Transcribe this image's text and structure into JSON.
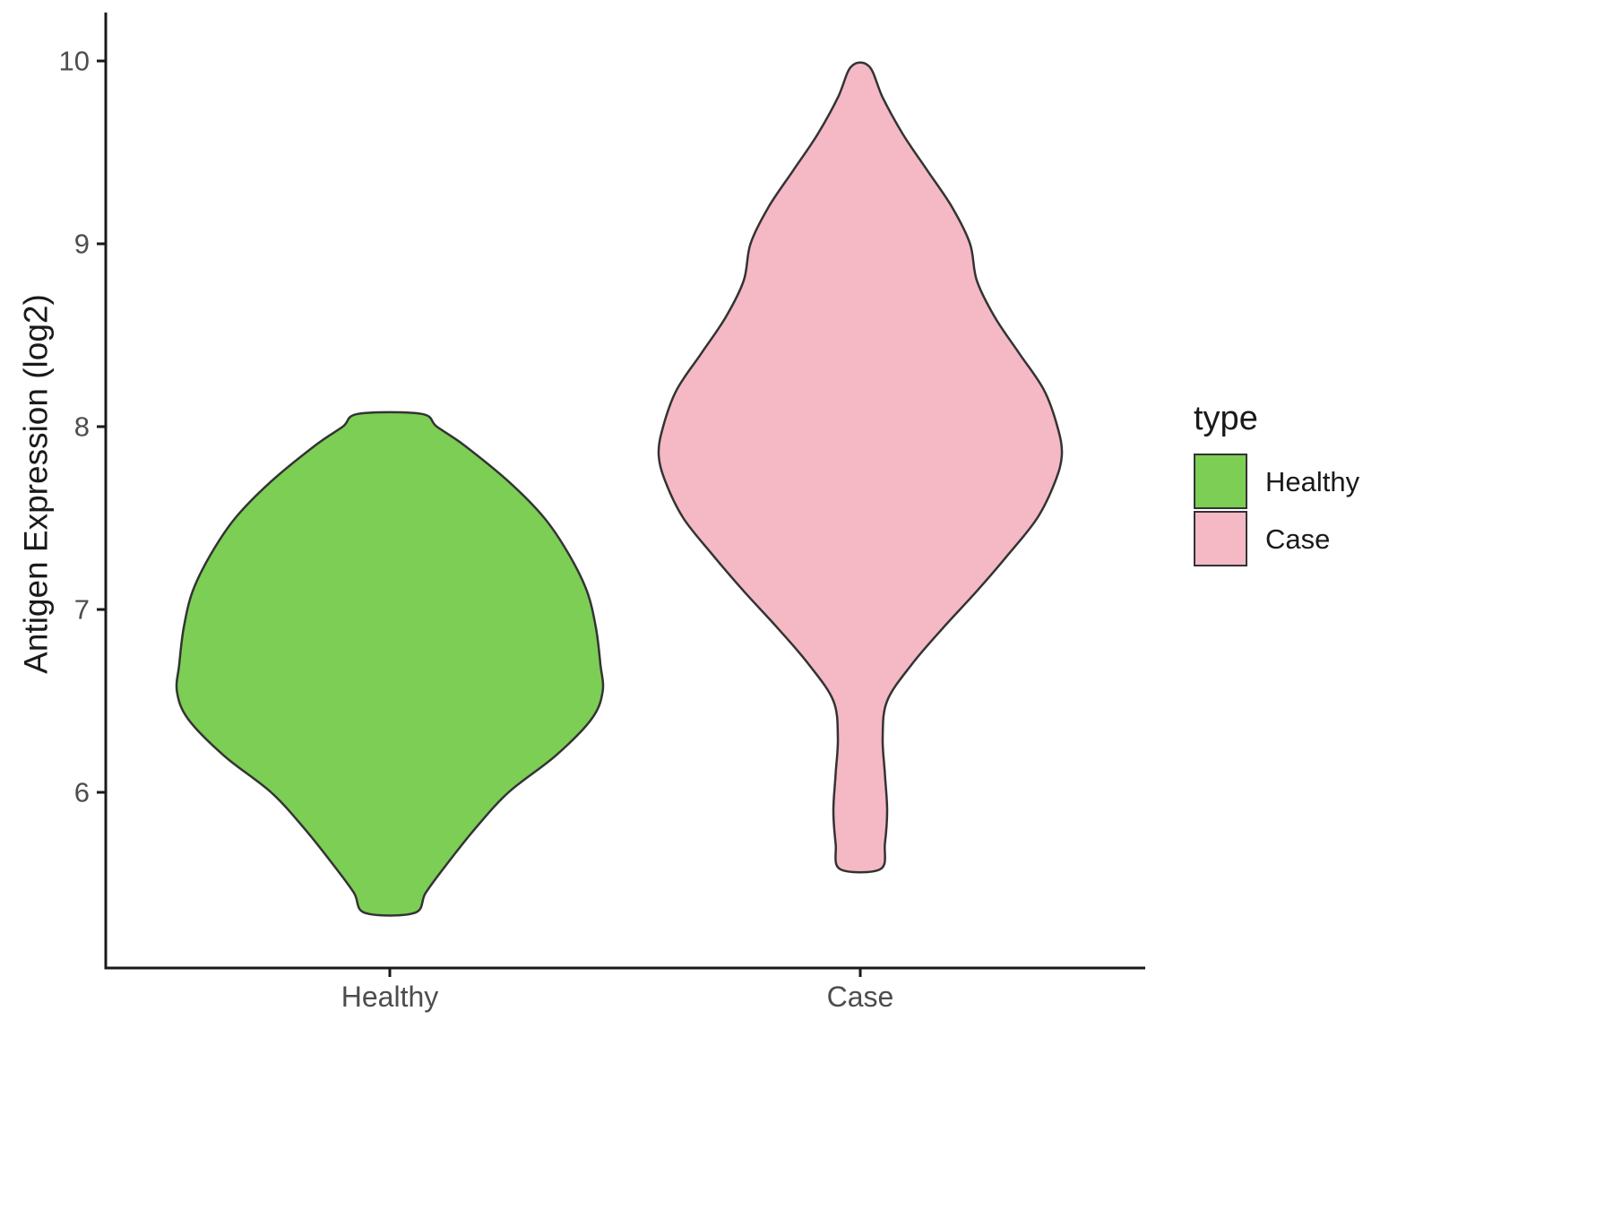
{
  "figure": {
    "background": "#FFFFFF",
    "axis_line_color": "#1a1a1a",
    "axis_text_color": "#4D4D4D"
  },
  "chart_data": {
    "type": "violin",
    "title": "",
    "xlabel": "",
    "ylabel": "Antigen Expression (log2)",
    "categories": [
      "Healthy",
      "Case"
    ],
    "yticks": [
      6,
      7,
      8,
      9,
      10
    ],
    "ylim": [
      5.2,
      10.1
    ],
    "grid": false,
    "stroke_color": "#333333",
    "legend": {
      "title": "type",
      "position": "right",
      "entries": [
        {
          "label": "Healthy",
          "color": "#7CCE55"
        },
        {
          "label": "Case",
          "color": "#F4B9C5"
        }
      ]
    },
    "series": [
      {
        "name": "Healthy",
        "category": "Healthy",
        "fill": "#7CCE55",
        "y_range": [
          5.34,
          8.07
        ],
        "profile": [
          [
            5.34,
            0.11
          ],
          [
            5.45,
            0.16
          ],
          [
            5.6,
            0.25
          ],
          [
            5.8,
            0.38
          ],
          [
            6.0,
            0.53
          ],
          [
            6.2,
            0.74
          ],
          [
            6.4,
            0.9
          ],
          [
            6.55,
            0.95
          ],
          [
            6.7,
            0.94
          ],
          [
            6.9,
            0.92
          ],
          [
            7.1,
            0.88
          ],
          [
            7.3,
            0.8
          ],
          [
            7.5,
            0.69
          ],
          [
            7.7,
            0.53
          ],
          [
            7.9,
            0.33
          ],
          [
            8.0,
            0.21
          ],
          [
            8.07,
            0.14
          ]
        ]
      },
      {
        "name": "Case",
        "category": "Case",
        "fill": "#F4B9C5",
        "y_range": [
          5.58,
          9.97
        ],
        "profile": [
          [
            5.58,
            0.09
          ],
          [
            5.72,
            0.11
          ],
          [
            5.9,
            0.12
          ],
          [
            6.1,
            0.11
          ],
          [
            6.3,
            0.1
          ],
          [
            6.5,
            0.12
          ],
          [
            6.7,
            0.23
          ],
          [
            6.9,
            0.37
          ],
          [
            7.1,
            0.52
          ],
          [
            7.3,
            0.66
          ],
          [
            7.5,
            0.79
          ],
          [
            7.7,
            0.87
          ],
          [
            7.85,
            0.9
          ],
          [
            8.0,
            0.88
          ],
          [
            8.2,
            0.82
          ],
          [
            8.4,
            0.71
          ],
          [
            8.6,
            0.6
          ],
          [
            8.8,
            0.52
          ],
          [
            9.0,
            0.49
          ],
          [
            9.2,
            0.41
          ],
          [
            9.4,
            0.3
          ],
          [
            9.6,
            0.19
          ],
          [
            9.8,
            0.1
          ],
          [
            9.97,
            0.04
          ]
        ]
      }
    ]
  }
}
